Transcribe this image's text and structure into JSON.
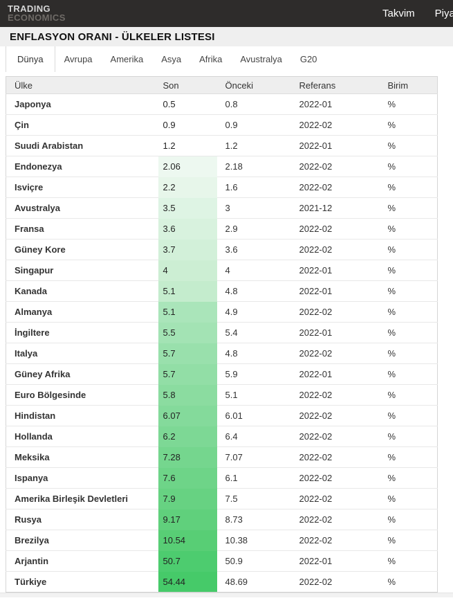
{
  "header": {
    "logo_line1": "TRADING",
    "logo_line2": "ECONOMICS",
    "menu": [
      {
        "label": "Takvim"
      },
      {
        "label": "Piyasalar"
      }
    ]
  },
  "page_title": "ENFLASYON ORANI - ÜLKELER LISTESI",
  "tabs": [
    {
      "label": "Dünya",
      "active": true
    },
    {
      "label": "Avrupa",
      "active": false
    },
    {
      "label": "Amerika",
      "active": false
    },
    {
      "label": "Asya",
      "active": false
    },
    {
      "label": "Afrika",
      "active": false
    },
    {
      "label": "Avustralya",
      "active": false
    },
    {
      "label": "G20",
      "active": false
    }
  ],
  "table": {
    "columns": [
      "Ülke",
      "Son",
      "Önceki",
      "Referans",
      "Birim"
    ],
    "rows": [
      {
        "country": "Japonya",
        "son": "0.5",
        "onceki": "0.8",
        "referans": "2022-01",
        "birim": "%",
        "son_bg": null
      },
      {
        "country": "Çin",
        "son": "0.9",
        "onceki": "0.9",
        "referans": "2022-02",
        "birim": "%",
        "son_bg": null
      },
      {
        "country": "Suudi Arabistan",
        "son": "1.2",
        "onceki": "1.2",
        "referans": "2022-01",
        "birim": "%",
        "son_bg": null
      },
      {
        "country": "Endonezya",
        "son": "2.06",
        "onceki": "2.18",
        "referans": "2022-02",
        "birim": "%",
        "son_bg": "#edf8f0"
      },
      {
        "country": "Isviçre",
        "son": "2.2",
        "onceki": "1.6",
        "referans": "2022-02",
        "birim": "%",
        "son_bg": "#e7f6ea"
      },
      {
        "country": "Avustralya",
        "son": "3.5",
        "onceki": "3",
        "referans": "2021-12",
        "birim": "%",
        "son_bg": "#def4e4"
      },
      {
        "country": "Fransa",
        "son": "3.6",
        "onceki": "2.9",
        "referans": "2022-02",
        "birim": "%",
        "son_bg": "#d8f2de"
      },
      {
        "country": "Güney Kore",
        "son": "3.7",
        "onceki": "3.6",
        "referans": "2022-02",
        "birim": "%",
        "son_bg": "#d2f0d9"
      },
      {
        "country": "Singapur",
        "son": "4",
        "onceki": "4",
        "referans": "2022-01",
        "birim": "%",
        "son_bg": "#cceed3"
      },
      {
        "country": "Kanada",
        "son": "5.1",
        "onceki": "4.8",
        "referans": "2022-01",
        "birim": "%",
        "son_bg": "#c4eccd"
      },
      {
        "country": "Almanya",
        "son": "5.1",
        "onceki": "4.9",
        "referans": "2022-02",
        "birim": "%",
        "son_bg": "#aae5ba"
      },
      {
        "country": "İngiltere",
        "son": "5.5",
        "onceki": "5.4",
        "referans": "2022-01",
        "birim": "%",
        "son_bg": "#a3e3b4"
      },
      {
        "country": "Italya",
        "son": "5.7",
        "onceki": "4.8",
        "referans": "2022-02",
        "birim": "%",
        "son_bg": "#99e0ac"
      },
      {
        "country": "Güney Afrika",
        "son": "5.7",
        "onceki": "5.9",
        "referans": "2022-01",
        "birim": "%",
        "son_bg": "#92dea6"
      },
      {
        "country": "Euro Bölgesinde",
        "son": "5.8",
        "onceki": "5.1",
        "referans": "2022-02",
        "birim": "%",
        "son_bg": "#8bdca0"
      },
      {
        "country": "Hindistan",
        "son": "6.07",
        "onceki": "6.01",
        "referans": "2022-02",
        "birim": "%",
        "son_bg": "#84da9b"
      },
      {
        "country": "Hollanda",
        "son": "6.2",
        "onceki": "6.4",
        "referans": "2022-02",
        "birim": "%",
        "son_bg": "#7dd895"
      },
      {
        "country": "Meksika",
        "son": "7.28",
        "onceki": "7.07",
        "referans": "2022-02",
        "birim": "%",
        "son_bg": "#75d68e"
      },
      {
        "country": "Ispanya",
        "son": "7.6",
        "onceki": "6.1",
        "referans": "2022-02",
        "birim": "%",
        "son_bg": "#6ed488"
      },
      {
        "country": "Amerika Birleşik Devletleri",
        "son": "7.9",
        "onceki": "7.5",
        "referans": "2022-02",
        "birim": "%",
        "son_bg": "#67d282"
      },
      {
        "country": "Rusya",
        "son": "9.17",
        "onceki": "8.73",
        "referans": "2022-02",
        "birim": "%",
        "son_bg": "#60d07c"
      },
      {
        "country": "Brezilya",
        "son": "10.54",
        "onceki": "10.38",
        "referans": "2022-02",
        "birim": "%",
        "son_bg": "#58ce75"
      },
      {
        "country": "Arjantin",
        "son": "50.7",
        "onceki": "50.9",
        "referans": "2022-01",
        "birim": "%",
        "son_bg": "#4dcc6f"
      },
      {
        "country": "Türkiye",
        "son": "54.44",
        "onceki": "48.69",
        "referans": "2022-02",
        "birim": "%",
        "son_bg": "#46ca69"
      }
    ]
  },
  "colors": {
    "topbar_bg": "#2e2c2b",
    "title_band_bg": "#efefef",
    "table_header_bg": "#eeeeee",
    "green_min": "#edf8f0",
    "green_max": "#46ca69"
  }
}
